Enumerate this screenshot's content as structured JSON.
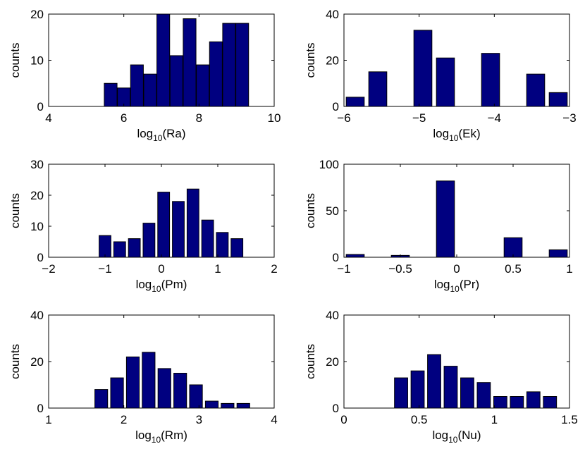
{
  "figure": {
    "bar_color": "#000080",
    "ylabel": "counts"
  },
  "chart_data": [
    {
      "type": "bar",
      "xlabel_base": "log",
      "xlabel_sub": "10",
      "xlabel_arg": "(Ra)",
      "xlim": [
        4,
        10
      ],
      "ylim": [
        0,
        20
      ],
      "xticks": [
        4,
        6,
        8,
        10
      ],
      "yticks": [
        0,
        10,
        20
      ],
      "bin_width": 0.34,
      "x": [
        5.65,
        6.0,
        6.35,
        6.7,
        7.05,
        7.4,
        7.75,
        8.1,
        8.45,
        8.8,
        9.15
      ],
      "values": [
        5,
        4,
        9,
        7,
        20,
        11,
        19,
        9,
        14,
        18,
        18
      ]
    },
    {
      "type": "bar",
      "xlabel_base": "log",
      "xlabel_sub": "10",
      "xlabel_arg": "(Ek)",
      "xlim": [
        -6,
        -3
      ],
      "ylim": [
        0,
        40
      ],
      "xticks": [
        -6,
        -5,
        -4,
        -3
      ],
      "yticks": [
        0,
        20,
        40
      ],
      "bin_width": 0.24,
      "x": [
        -5.85,
        -5.55,
        -5.25,
        -4.95,
        -4.65,
        -4.35,
        -4.05,
        -3.75,
        -3.45,
        -3.15
      ],
      "values": [
        4,
        15,
        0,
        33,
        21,
        0,
        23,
        0,
        14,
        6
      ]
    },
    {
      "type": "bar",
      "xlabel_base": "log",
      "xlabel_sub": "10",
      "xlabel_arg": "(Pm)",
      "xlim": [
        -2,
        2
      ],
      "ylim": [
        0,
        30
      ],
      "xticks": [
        -2,
        -1,
        0,
        1,
        2
      ],
      "yticks": [
        0,
        10,
        20,
        30
      ],
      "bin_width": 0.21,
      "x": [
        -1.0,
        -0.74,
        -0.48,
        -0.22,
        0.04,
        0.3,
        0.56,
        0.82,
        1.08,
        1.34
      ],
      "values": [
        7,
        5,
        6,
        11,
        21,
        18,
        22,
        12,
        8,
        6
      ]
    },
    {
      "type": "bar",
      "xlabel_base": "log",
      "xlabel_sub": "10",
      "xlabel_arg": "(Pr)",
      "xlim": [
        -1,
        1
      ],
      "ylim": [
        0,
        100
      ],
      "xticks": [
        -1,
        -0.5,
        0,
        0.5,
        1
      ],
      "yticks": [
        0,
        50,
        100
      ],
      "bin_width": 0.16,
      "x": [
        -0.9,
        -0.7,
        -0.5,
        -0.3,
        -0.1,
        0.1,
        0.3,
        0.5,
        0.7,
        0.9
      ],
      "values": [
        3,
        0,
        2,
        0,
        82,
        0,
        0,
        21,
        0,
        8
      ]
    },
    {
      "type": "bar",
      "xlabel_base": "log",
      "xlabel_sub": "10",
      "xlabel_arg": "(Rm)",
      "xlim": [
        1,
        4
      ],
      "ylim": [
        0,
        40
      ],
      "xticks": [
        1,
        2,
        3,
        4
      ],
      "yticks": [
        0,
        20,
        40
      ],
      "bin_width": 0.17,
      "x": [
        1.7,
        1.91,
        2.12,
        2.33,
        2.54,
        2.75,
        2.96,
        3.17,
        3.38,
        3.59
      ],
      "values": [
        8,
        13,
        22,
        24,
        17,
        15,
        10,
        3,
        2,
        2
      ]
    },
    {
      "type": "bar",
      "xlabel_base": "log",
      "xlabel_sub": "10",
      "xlabel_arg": "(Nu)",
      "xlim": [
        0,
        1.5
      ],
      "ylim": [
        0,
        40
      ],
      "xticks": [
        0,
        0.5,
        1,
        1.5
      ],
      "yticks": [
        0,
        20,
        40
      ],
      "bin_width": 0.088,
      "x": [
        0.38,
        0.49,
        0.6,
        0.71,
        0.82,
        0.93,
        1.04,
        1.15,
        1.26,
        1.37
      ],
      "values": [
        13,
        16,
        23,
        18,
        13,
        11,
        5,
        5,
        7,
        5
      ]
    }
  ]
}
